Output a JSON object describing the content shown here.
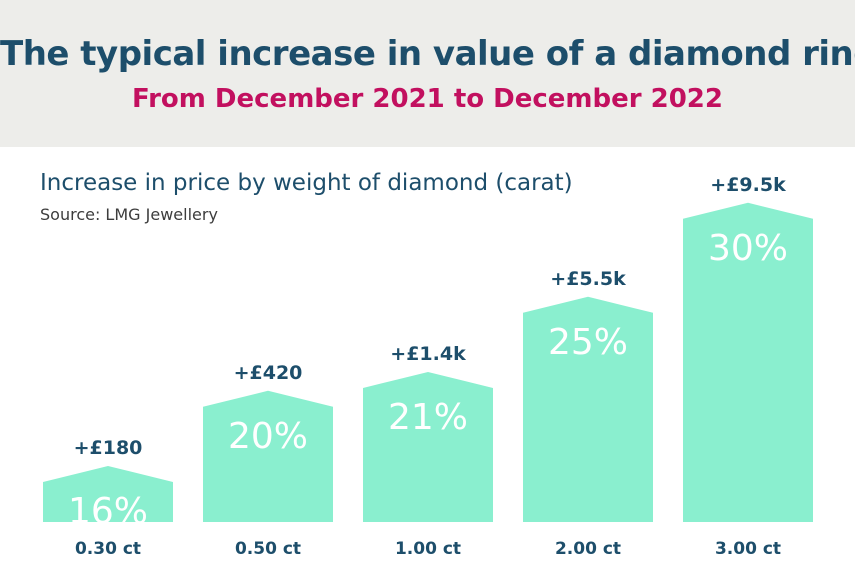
{
  "header": {
    "title": "The typical increase in value of a diamond ring",
    "subtitle": "From December 2021 to December 2022"
  },
  "colors": {
    "header_bg": "#ededea",
    "title": "#1d4e6b",
    "subtitle": "#c2105f",
    "bar": "#8aefcf",
    "bar_label": "#ffffff"
  },
  "chart_data": {
    "type": "bar",
    "title": "Increase in price by weight of diamond (carat)",
    "source": "Source: LMG Jewellery",
    "categories": [
      "0.30 ct",
      "0.50 ct",
      "1.00 ct",
      "2.00 ct",
      "3.00 ct"
    ],
    "values": [
      16,
      20,
      21,
      25,
      30
    ],
    "value_labels": [
      "16%",
      "20%",
      "21%",
      "25%",
      "30%"
    ],
    "price_labels": [
      "+£180",
      "+£420",
      "+£1.4k",
      "+£5.5k",
      "+£9.5k"
    ],
    "price_values_gbp": [
      180,
      420,
      1400,
      5500,
      9500
    ],
    "bar_shape": "house (pointed top)"
  }
}
